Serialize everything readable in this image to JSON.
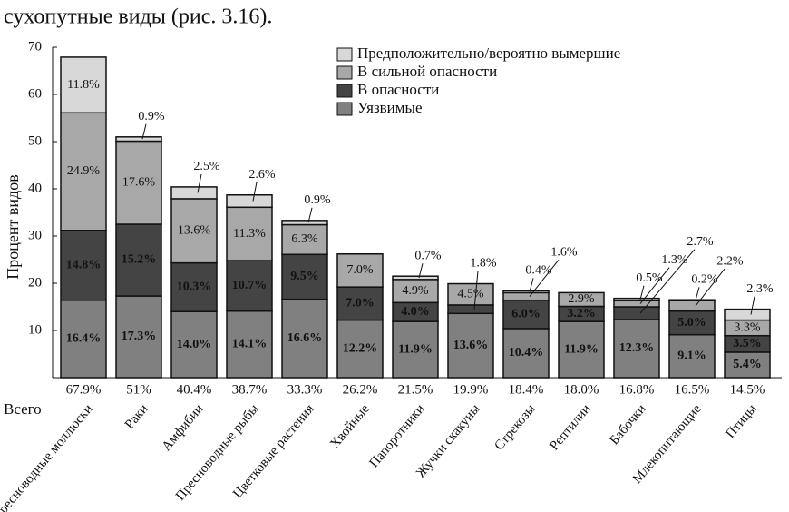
{
  "chart_data": {
    "type": "stacked-bar",
    "caption": "сухопутные виды (рис. 3.16).",
    "y_label": "Процент видов",
    "categories": [
      "Пресноводные моллюски",
      "Раки",
      "Амфибии",
      "Пресноводные рыбы",
      "Цветковые растения",
      "Хвойные",
      "Папоротники",
      "Жучки скакуны",
      "Стрекозы",
      "Рептилии",
      "Бабочки",
      "Млекопитающие",
      "Птицы"
    ],
    "series": [
      {
        "name": "Уязвимые",
        "color": "#808080",
        "values": [
          16.4,
          17.3,
          14.0,
          14.1,
          16.6,
          12.2,
          11.9,
          13.6,
          10.4,
          11.9,
          12.3,
          9.1,
          5.4
        ],
        "value_labels": [
          "16.4%",
          "17.3%",
          "14.0%",
          "14.1%",
          "16.6%",
          "12.2%",
          "11.9%",
          "13.6%",
          "10.4%",
          "11.9%",
          "12.3%",
          "9.1%",
          "5.4%"
        ]
      },
      {
        "name": "В опасности",
        "color": "#444444",
        "values": [
          14.8,
          15.2,
          10.3,
          10.7,
          9.5,
          7.0,
          4.0,
          1.8,
          6.0,
          3.2,
          2.7,
          5.0,
          3.5
        ],
        "value_labels": [
          "14.8%",
          "15.2%",
          "10.3%",
          "10.7%",
          "9.5%",
          "7.0%",
          "4.0%",
          "1.8%",
          "6.0%",
          "3.2%",
          "2.7%",
          "5.0%",
          "3.5%"
        ]
      },
      {
        "name": "В сильной опасности",
        "color": "#a8a8a8",
        "values": [
          24.9,
          17.6,
          13.6,
          11.3,
          6.3,
          7.0,
          4.9,
          4.5,
          1.6,
          2.9,
          1.3,
          2.2,
          3.3
        ],
        "value_labels": [
          "24.9%",
          "17.6%",
          "13.6%",
          "11.3%",
          "6.3%",
          "7.0%",
          "4.9%",
          "4.5%",
          "1.6%",
          "2.9%",
          "1.3%",
          "2.2%",
          "3.3%"
        ]
      },
      {
        "name": "Предположительно/вероятно вымершие",
        "color": "#d8d8d8",
        "values": [
          11.8,
          0.9,
          2.5,
          2.6,
          0.9,
          null,
          0.7,
          null,
          0.4,
          null,
          0.5,
          0.2,
          2.3
        ],
        "value_labels": [
          "11.8%",
          "0.9%",
          "2.5%",
          "2.6%",
          "0.9%",
          null,
          "0.7%",
          null,
          "0.4%",
          null,
          "0.5%",
          "0.2%",
          "2.3%"
        ]
      }
    ],
    "total_title": "Всего",
    "total_labels": [
      "67.9%",
      "51%",
      "40.4%",
      "38.7%",
      "33.3%",
      "26.2%",
      "21.5%",
      "19.9%",
      "18.4%",
      "18.0%",
      "16.8%",
      "16.5%",
      "14.5%"
    ],
    "ylim": [
      0,
      70
    ],
    "yticks": [
      10,
      20,
      30,
      40,
      50,
      60,
      70
    ],
    "legend": "top-right"
  }
}
